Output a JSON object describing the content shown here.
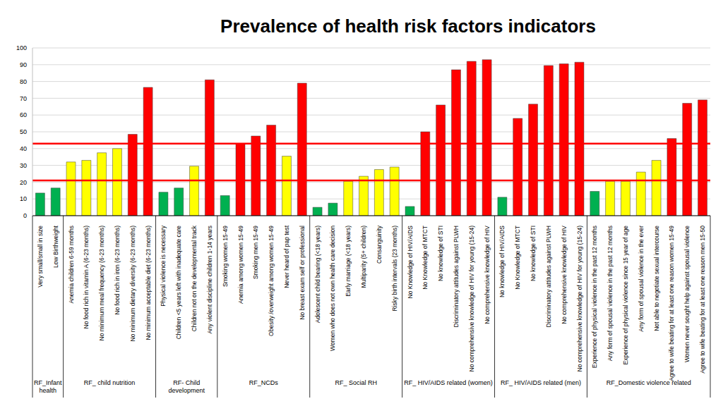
{
  "chart_data": {
    "type": "bar",
    "title": "Prevalence of health risk factors indicators",
    "categories": [
      "Very small/small in size",
      "Low Birthweight",
      "Anemia children 6-59 months",
      "No food rich in vitamin A (6-23 months)",
      "No minimum meal frequency (6-23 months)",
      "No food rich in iron (6-23 months)",
      "No minimum dietary diversity (6-23 months)",
      "No minimum acceptable diet (6-23 months)",
      "Physical violence is necessary",
      "Children <5 years left with inadequate care",
      "Children not on the developmental track",
      "Any violent discipline children 1-14 years",
      "Smoking women 15-49",
      "Anemia among women 15-49",
      "Smoking men 15-49",
      "Obesity /overweight among women 15-49",
      "Never heard of pap test",
      "No breast exam self or professional",
      "Adolescent child bearing (<18 years)",
      "Women who does not own health care decision",
      "Early marriage (<18 years)",
      "Multiparity (5+ children)",
      "Consanguinity",
      "Risky birth intervals (23 months)",
      "No Knowledge of HIV/AIDS",
      "No Knowledge of MTCT",
      "No knowledge of STI",
      "Discriminatory attitudes against PLWH",
      "No comprehensive knowledge of HIV for young  (15-24)",
      "No comprehensive knowledge of HIV",
      "No knowledge of HIV/AIDS",
      "No Knowledge of MTCT",
      "No knowledge of STI",
      "Discriminatory attitudes against PLWH",
      "No comprehensive knowledge of HIV",
      "No comprehensive knowledge of HIV for young  (15-24)",
      "Experience of physical violence in the past 12  months",
      "Any form of spousal violence in the past 12 months",
      "Experience of physical violence since 15 year of age",
      "Any form of spousal violence in the ever",
      "Not able to negotiate sexual intercourse",
      "Agree to wife beating for at least one reason women 15-49",
      "Women never sought help  against spousal violence",
      "Agree to wife beating for at least one reason men 15-50"
    ],
    "values": [
      13.5,
      16.5,
      32,
      33,
      37.5,
      40,
      48.5,
      76.5,
      14,
      16.5,
      29.5,
      81,
      12,
      43,
      47.5,
      54,
      35.5,
      79,
      5,
      7.5,
      20.5,
      23.5,
      27.5,
      29,
      5.5,
      50,
      66,
      87,
      92,
      93,
      11,
      58,
      66.5,
      89.5,
      90.5,
      91.5,
      14.5,
      20.5,
      20.5,
      26,
      33,
      46,
      67,
      69
    ],
    "colors": [
      "#00b050",
      "#00b050",
      "#ffff00",
      "#ffff00",
      "#ffff00",
      "#ffff00",
      "#ff0000",
      "#ff0000",
      "#00b050",
      "#00b050",
      "#ffff00",
      "#ff0000",
      "#00b050",
      "#ff0000",
      "#ff0000",
      "#ff0000",
      "#ffff00",
      "#ff0000",
      "#00b050",
      "#00b050",
      "#ffff00",
      "#ffff00",
      "#ffff00",
      "#ffff00",
      "#00b050",
      "#ff0000",
      "#ff0000",
      "#ff0000",
      "#ff0000",
      "#ff0000",
      "#00b050",
      "#ff0000",
      "#ff0000",
      "#ff0000",
      "#ff0000",
      "#ff0000",
      "#00b050",
      "#ffff00",
      "#ffff00",
      "#ffff00",
      "#ffff00",
      "#ff0000",
      "#ff0000",
      "#ff0000"
    ],
    "groups": [
      {
        "label": "RF_Infant health",
        "size": 2
      },
      {
        "label": "RF_ child nutrition",
        "size": 6
      },
      {
        "label": "RF- Child development",
        "size": 4
      },
      {
        "label": "RF_NCDs",
        "size": 6
      },
      {
        "label": "RF_ Social RH",
        "size": 6
      },
      {
        "label": "RF_ HIV/AIDS related (women)",
        "size": 6
      },
      {
        "label": "RF_ HIV/AIDS related (men)",
        "size": 6
      },
      {
        "label": "RF_Domestic violence related",
        "size": 8
      }
    ],
    "thresholds": [
      43,
      21
    ],
    "ylim": [
      0,
      100
    ],
    "yticks": [
      0,
      10,
      20,
      30,
      40,
      50,
      60,
      70,
      80,
      90,
      100
    ],
    "grid": true
  }
}
